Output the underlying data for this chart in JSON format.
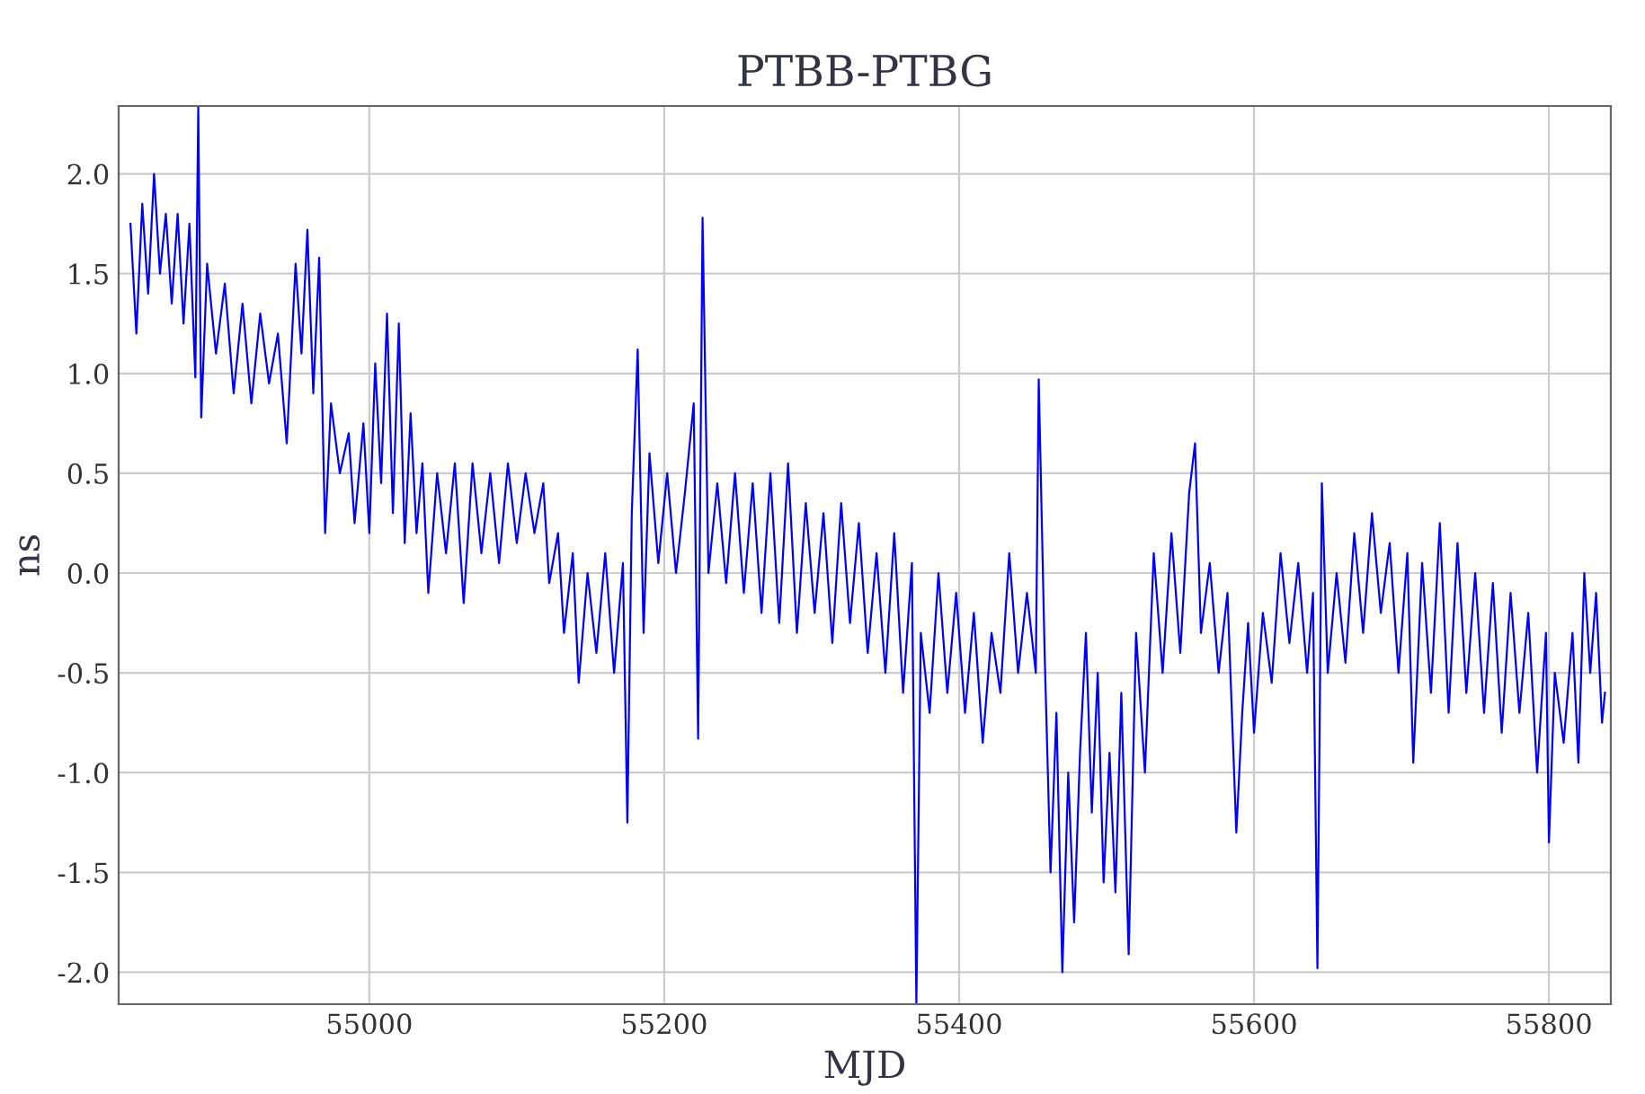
{
  "chart_data": {
    "type": "line",
    "title": "PTBB-PTBG",
    "xlabel": "MJD",
    "ylabel": "ns",
    "x": [
      54838,
      54842,
      54846,
      54850,
      54854,
      54858,
      54862,
      54866,
      54870,
      54874,
      54878,
      54882,
      54884,
      54886,
      54890,
      54896,
      54902,
      54908,
      54914,
      54920,
      54926,
      54932,
      54938,
      54944,
      54950,
      54954,
      54958,
      54962,
      54966,
      54970,
      54974,
      54980,
      54986,
      54990,
      54996,
      55000,
      55004,
      55008,
      55012,
      55016,
      55020,
      55024,
      55028,
      55032,
      55036,
      55040,
      55046,
      55052,
      55058,
      55064,
      55070,
      55076,
      55082,
      55088,
      55094,
      55100,
      55106,
      55112,
      55118,
      55122,
      55128,
      55132,
      55138,
      55142,
      55148,
      55154,
      55160,
      55166,
      55172,
      55175,
      55178,
      55182,
      55186,
      55190,
      55196,
      55202,
      55208,
      55214,
      55220,
      55223,
      55226,
      55230,
      55236,
      55242,
      55248,
      55254,
      55260,
      55266,
      55272,
      55278,
      55284,
      55290,
      55296,
      55302,
      55308,
      55314,
      55320,
      55326,
      55332,
      55338,
      55344,
      55350,
      55356,
      55362,
      55368,
      55371,
      55374,
      55380,
      55386,
      55392,
      55398,
      55404,
      55410,
      55416,
      55422,
      55428,
      55434,
      55440,
      55446,
      55452,
      55454,
      55458,
      55462,
      55466,
      55470,
      55474,
      55478,
      55482,
      55486,
      55490,
      55494,
      55498,
      55502,
      55506,
      55510,
      55515,
      55520,
      55526,
      55532,
      55538,
      55544,
      55550,
      55556,
      55560,
      55564,
      55570,
      55576,
      55582,
      55588,
      55592,
      55596,
      55600,
      55606,
      55612,
      55618,
      55624,
      55630,
      55636,
      55640,
      55643,
      55646,
      55650,
      55656,
      55662,
      55668,
      55674,
      55680,
      55686,
      55692,
      55698,
      55704,
      55708,
      55714,
      55720,
      55726,
      55732,
      55738,
      55744,
      55750,
      55756,
      55762,
      55768,
      55774,
      55780,
      55786,
      55792,
      55798,
      55800,
      55804,
      55810,
      55816,
      55820,
      55824,
      55828,
      55832,
      55836,
      55838
    ],
    "series": [
      {
        "color": "#0000ff",
        "values": [
          1.75,
          1.2,
          1.85,
          1.4,
          2.0,
          1.5,
          1.8,
          1.35,
          1.8,
          1.25,
          1.75,
          0.98,
          2.34,
          0.78,
          1.55,
          1.1,
          1.45,
          0.9,
          1.35,
          0.85,
          1.3,
          0.95,
          1.2,
          0.65,
          1.55,
          1.1,
          1.72,
          0.9,
          1.58,
          0.2,
          0.85,
          0.5,
          0.7,
          0.25,
          0.75,
          0.2,
          1.05,
          0.45,
          1.3,
          0.3,
          1.25,
          0.15,
          0.8,
          0.2,
          0.55,
          -0.1,
          0.5,
          0.1,
          0.55,
          -0.15,
          0.55,
          0.1,
          0.5,
          0.05,
          0.55,
          0.15,
          0.5,
          0.2,
          0.45,
          -0.05,
          0.2,
          -0.3,
          0.1,
          -0.55,
          0.0,
          -0.4,
          0.1,
          -0.5,
          0.05,
          -1.25,
          0.3,
          1.12,
          -0.3,
          0.6,
          0.05,
          0.5,
          0.0,
          0.4,
          0.85,
          -0.83,
          1.78,
          0.0,
          0.45,
          -0.05,
          0.5,
          -0.1,
          0.45,
          -0.2,
          0.5,
          -0.25,
          0.55,
          -0.3,
          0.35,
          -0.2,
          0.3,
          -0.35,
          0.35,
          -0.25,
          0.25,
          -0.4,
          0.1,
          -0.5,
          0.2,
          -0.6,
          0.05,
          -2.16,
          -0.3,
          -0.7,
          0.0,
          -0.6,
          -0.1,
          -0.7,
          -0.2,
          -0.85,
          -0.3,
          -0.6,
          0.1,
          -0.5,
          -0.1,
          -0.5,
          0.97,
          -0.4,
          -1.5,
          -0.7,
          -2.0,
          -1.0,
          -1.75,
          -0.9,
          -0.3,
          -1.2,
          -0.5,
          -1.55,
          -0.9,
          -1.6,
          -0.6,
          -1.91,
          -0.3,
          -1.0,
          0.1,
          -0.5,
          0.2,
          -0.4,
          0.4,
          0.65,
          -0.3,
          0.05,
          -0.5,
          -0.1,
          -1.3,
          -0.7,
          -0.25,
          -0.8,
          -0.2,
          -0.55,
          0.1,
          -0.35,
          0.05,
          -0.5,
          -0.1,
          -1.98,
          0.45,
          -0.5,
          0.0,
          -0.45,
          0.2,
          -0.3,
          0.3,
          -0.2,
          0.15,
          -0.5,
          0.1,
          -0.95,
          0.05,
          -0.6,
          0.25,
          -0.7,
          0.15,
          -0.6,
          0.0,
          -0.7,
          -0.05,
          -0.8,
          -0.1,
          -0.7,
          -0.2,
          -1.0,
          -0.3,
          -1.35,
          -0.5,
          -0.85,
          -0.3,
          -0.95,
          0.0,
          -0.5,
          -0.1,
          -0.75,
          -0.6
        ]
      }
    ],
    "xlim": [
      54830,
      55842
    ],
    "ylim": [
      -2.16,
      2.34
    ],
    "xticks": [
      55000,
      55200,
      55400,
      55600,
      55800
    ],
    "yticks": [
      {
        "value": -2,
        "label": "-2.0"
      },
      {
        "value": -1.5,
        "label": "-1.5"
      },
      {
        "value": -1,
        "label": "-1.0"
      },
      {
        "value": -0.5,
        "label": "-0.5"
      },
      {
        "value": 0,
        "label": "0.0"
      },
      {
        "value": 0.5,
        "label": "0.5"
      },
      {
        "value": 1,
        "label": "1.0"
      },
      {
        "value": 1.5,
        "label": "1.5"
      },
      {
        "value": 2,
        "label": "2.0"
      }
    ],
    "grid": true
  }
}
